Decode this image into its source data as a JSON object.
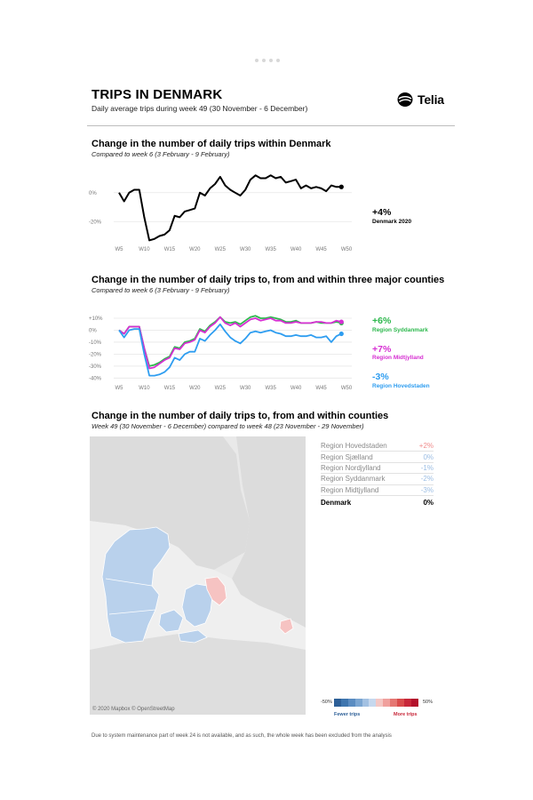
{
  "header": {
    "title": "TRIPS IN DENMARK",
    "subtitle": "Daily average trips during week 49 (30 November - 6 December)",
    "logo_text": "Telia"
  },
  "chart_data": [
    {
      "type": "line",
      "title": "Change in the number of daily trips within Denmark",
      "subtitle": "Compared to week 6 (3 February - 9 February)",
      "x": [
        5,
        6,
        7,
        8,
        9,
        10,
        11,
        12,
        13,
        14,
        15,
        16,
        17,
        18,
        19,
        20,
        21,
        22,
        23,
        24,
        25,
        26,
        27,
        28,
        29,
        30,
        31,
        32,
        33,
        34,
        35,
        36,
        37,
        38,
        39,
        40,
        41,
        42,
        43,
        44,
        45,
        46,
        47,
        48,
        49
      ],
      "x_tick_labels": [
        "W5",
        "W10",
        "W15",
        "W20",
        "W25",
        "W30",
        "W35",
        "W40",
        "W45",
        "W50"
      ],
      "x_ticks": [
        5,
        10,
        15,
        20,
        25,
        30,
        35,
        40,
        45,
        50
      ],
      "y_tick_labels": [
        "0%",
        "-20%"
      ],
      "y_ticks": [
        0,
        -20
      ],
      "ylim": [
        -34,
        14
      ],
      "series": [
        {
          "values": [
            0,
            -6,
            0,
            2,
            2,
            -17,
            -33,
            -32,
            -30,
            -29,
            -26,
            -16,
            -17,
            -13,
            -12,
            -11,
            0,
            -2,
            3,
            6,
            11,
            5,
            2,
            0,
            -2,
            2,
            9,
            12,
            10,
            10,
            12,
            10,
            11,
            7,
            8,
            9,
            3,
            5,
            3,
            4,
            3,
            1,
            5,
            4,
            4
          ]
        }
      ],
      "end_label": "+4%",
      "end_sublabel": "Denmark 2020",
      "color": "#000000"
    },
    {
      "type": "line",
      "title": "Change in the number of daily trips to, from and within three major counties",
      "subtitle": "Compared to week 6 (3 February - 9 February)",
      "x": [
        5,
        6,
        7,
        8,
        9,
        10,
        11,
        12,
        13,
        14,
        15,
        16,
        17,
        18,
        19,
        20,
        21,
        22,
        23,
        24,
        25,
        26,
        27,
        28,
        29,
        30,
        31,
        32,
        33,
        34,
        35,
        36,
        37,
        38,
        39,
        40,
        41,
        42,
        43,
        44,
        45,
        46,
        47,
        48,
        49
      ],
      "x_tick_labels": [
        "W5",
        "W10",
        "W15",
        "W20",
        "W25",
        "W30",
        "W35",
        "W40",
        "W45",
        "W50"
      ],
      "x_ticks": [
        5,
        10,
        15,
        20,
        25,
        30,
        35,
        40,
        45,
        50
      ],
      "y_tick_labels": [
        "+10%",
        "0%",
        "-10%",
        "-20%",
        "-30%",
        "-40%"
      ],
      "y_ticks": [
        10,
        0,
        -10,
        -20,
        -30,
        -40
      ],
      "ylim": [
        -42,
        13
      ],
      "series": [
        {
          "name": "Region Syddanmark",
          "color": "#2db84d",
          "end_value_label": "+6%",
          "values": [
            0,
            -3,
            3,
            3,
            3,
            -15,
            -30,
            -29,
            -27,
            -24,
            -22,
            -14,
            -15,
            -10,
            -9,
            -7,
            1,
            -1,
            4,
            7,
            11,
            7,
            6,
            7,
            5,
            8,
            11,
            12,
            10,
            10,
            11,
            10,
            9,
            7,
            7,
            8,
            6,
            6,
            6,
            7,
            6,
            6,
            6,
            7,
            6
          ]
        },
        {
          "name": "Region Midtjylland",
          "color": "#d62fd2",
          "end_value_label": "+7%",
          "values": [
            0,
            -3,
            3,
            3,
            3,
            -15,
            -32,
            -31,
            -28,
            -25,
            -23,
            -15,
            -16,
            -11,
            -10,
            -8,
            0,
            -2,
            3,
            6,
            11,
            6,
            4,
            6,
            3,
            6,
            9,
            10,
            8,
            9,
            10,
            8,
            8,
            6,
            6,
            7,
            6,
            6,
            6,
            7,
            7,
            6,
            6,
            8,
            7
          ]
        },
        {
          "name": "Region Hovedstaden",
          "color": "#2e9df0",
          "end_value_label": "-3%",
          "values": [
            0,
            -6,
            0,
            1,
            1,
            -20,
            -38,
            -38,
            -37,
            -35,
            -31,
            -23,
            -25,
            -20,
            -18,
            -18,
            -7,
            -9,
            -4,
            0,
            5,
            -1,
            -6,
            -9,
            -11,
            -7,
            -2,
            -1,
            -2,
            -1,
            0,
            -2,
            -3,
            -5,
            -5,
            -4,
            -5,
            -5,
            -4,
            -6,
            -6,
            -5,
            -10,
            -5,
            -3
          ]
        }
      ]
    }
  ],
  "map_section": {
    "title": "Change in the number of daily trips to, from and within counties",
    "subtitle": "Week 49 (30 November - 6 December) compared to week 48 (23 November - 29 November)",
    "credit": "© 2020 Mapbox © OpenStreetMap",
    "regions": [
      {
        "name": "Region Hovedstaden",
        "value": "+2%",
        "color": "#f08c8c"
      },
      {
        "name": "Region Sjælland",
        "value": "0%",
        "color": "#b9d1ec"
      },
      {
        "name": "Region Nordjylland",
        "value": "-1%",
        "color": "#b9d1ec"
      },
      {
        "name": "Region Syddanmark",
        "value": "-2%",
        "color": "#b9d1ec"
      },
      {
        "name": "Region Midtjylland",
        "value": "-3%",
        "color": "#b9d1ec"
      }
    ],
    "total": {
      "name": "Denmark",
      "value": "0%"
    },
    "scale": {
      "min_label": "-50%",
      "max_label": "50%",
      "fewer_label": "Fewer trips",
      "more_label": "More trips",
      "colors": [
        "#2d5f97",
        "#3e75ae",
        "#5a8cc1",
        "#7ba6d2",
        "#a3c1e2",
        "#c6d8ee",
        "#f4c7c4",
        "#f0a09d",
        "#e57773",
        "#d94c4c",
        "#c8283a",
        "#b3112c"
      ]
    }
  },
  "footnote": "Due to system maintenance part of week 24 is not available, and as such, the whole week has been excluded from the analysis",
  "colors": {
    "positive_label": "#e0413f",
    "negative_label": "#2e77c9",
    "fewer": "#2d5f97",
    "more": "#c8283a"
  }
}
